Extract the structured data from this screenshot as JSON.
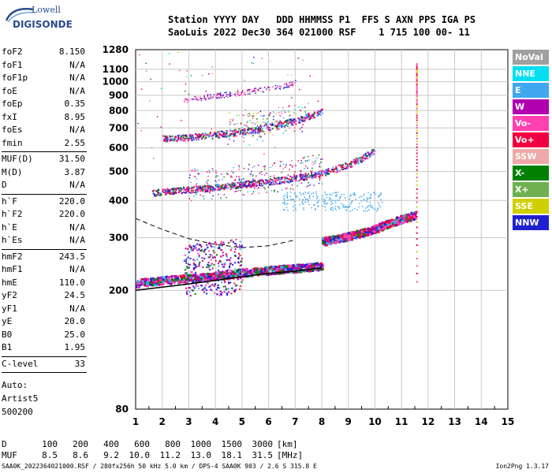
{
  "header": {
    "labels_line": "Station YYYY DAY   DDD HHMMSS P1  FFS S AXN PPS IGA PS",
    "values_line": "SaoLuis 2022 Dec30 364 021000 RSF    1 715 100 00- 11"
  },
  "logo": {
    "top": "Lowell",
    "bottom": "DIGISONDE"
  },
  "params": [
    [
      {
        "k": "foF2",
        "v": "8.150"
      },
      {
        "k": "foF1",
        "v": "N/A"
      },
      {
        "k": "foF1p",
        "v": "N/A"
      },
      {
        "k": "foE",
        "v": "N/A"
      },
      {
        "k": "foEp",
        "v": "0.35"
      },
      {
        "k": "fxI",
        "v": "8.95"
      },
      {
        "k": "foEs",
        "v": "N/A"
      },
      {
        "k": "fmin",
        "v": "2.55"
      }
    ],
    [
      {
        "k": "MUF(D)",
        "v": "31.50"
      },
      {
        "k": "M(D)",
        "v": "3.87"
      },
      {
        "k": "D",
        "v": "N/A"
      }
    ],
    [
      {
        "k": "h`F",
        "v": "220.0"
      },
      {
        "k": "h`F2",
        "v": "220.0"
      },
      {
        "k": "h`E",
        "v": "N/A"
      },
      {
        "k": "h`Es",
        "v": "N/A"
      }
    ],
    [
      {
        "k": "hmF2",
        "v": "243.5"
      },
      {
        "k": "hmF1",
        "v": "N/A"
      },
      {
        "k": "hmE",
        "v": "110.0"
      },
      {
        "k": "yF2",
        "v": "24.5"
      },
      {
        "k": "yF1",
        "v": "N/A"
      },
      {
        "k": "yE",
        "v": "20.0"
      },
      {
        "k": "B0",
        "v": "25.0"
      },
      {
        "k": "B1",
        "v": "1.95"
      }
    ],
    [
      {
        "k": "C-level",
        "v": "33"
      }
    ]
  ],
  "autoscale": {
    "l1": "Auto:",
    "l2": "Artist5",
    "l3": "500200"
  },
  "legend": [
    {
      "label": "NoVal",
      "color": "#a0a0a0"
    },
    {
      "label": "NNE",
      "color": "#00e0f0"
    },
    {
      "label": "E",
      "color": "#40a8f0"
    },
    {
      "label": "W",
      "color": "#b000b0"
    },
    {
      "label": "Vo-",
      "color": "#ff40b0"
    },
    {
      "label": "Vo+",
      "color": "#f00040"
    },
    {
      "label": "SSW",
      "color": "#f0a8a8"
    },
    {
      "label": "X-",
      "color": "#008000"
    },
    {
      "label": "X+",
      "color": "#70b050"
    },
    {
      "label": "SSE",
      "color": "#d0d000"
    },
    {
      "label": "NNW",
      "color": "#2020d0"
    }
  ],
  "mufTable": {
    "d_label": "D",
    "d_values": [
      "100",
      "200",
      "400",
      "600",
      "800",
      "1000",
      "1500",
      "3000"
    ],
    "d_unit": "[km]",
    "muf_label": "MUF",
    "muf_values": [
      "8.5",
      "8.6",
      "9.2",
      "10.0",
      "11.2",
      "13.0",
      "18.1",
      "31.5"
    ],
    "muf_unit": "[MHz]"
  },
  "footer": {
    "left": "SAA0K_2022364021000.RSF / 280fx256h 50 kHz 5.0 km / DPS-4 SAA0K 903 / 2.6 S 315.8 E",
    "right": "Ion2Png 1.3.17"
  },
  "chart_data": {
    "type": "scatter",
    "title": "",
    "xlabel": "",
    "ylabel": "",
    "xlim": [
      1,
      15
    ],
    "ylim": [
      80,
      1280
    ],
    "y_scale": "log",
    "x_ticks": [
      1,
      2,
      3,
      4,
      5,
      6,
      7,
      8,
      9,
      10,
      11,
      12,
      13,
      14,
      15
    ],
    "y_ticks": [
      80,
      200,
      300,
      400,
      500,
      600,
      700,
      800,
      900,
      1000,
      1100,
      1280
    ],
    "grid": true,
    "traces": [
      {
        "name": "trace_o1",
        "x": [
          1.0,
          2.0,
          3.0,
          4.0,
          5.0,
          6.0,
          7.0,
          7.5,
          8.0
        ],
        "y": [
          210,
          215,
          218,
          222,
          228,
          232,
          236,
          238,
          240
        ]
      },
      {
        "name": "trace_1hop",
        "x": [
          8.0,
          8.5,
          9.0,
          9.5,
          10.0,
          10.5,
          11.0,
          11.5
        ],
        "y": [
          290,
          295,
          302,
          310,
          320,
          333,
          345,
          355
        ]
      },
      {
        "name": "trace_2hop",
        "x": [
          1.5,
          2,
          3,
          4,
          5,
          6,
          7,
          8,
          8.5,
          9,
          9.5,
          10
        ],
        "y": [
          420,
          425,
          432,
          440,
          450,
          460,
          472,
          490,
          505,
          525,
          550,
          585
        ]
      },
      {
        "name": "trace_3hop",
        "x": [
          2,
          3,
          4,
          5,
          6,
          7,
          8
        ],
        "y": [
          640,
          648,
          660,
          675,
          700,
          735,
          790
        ]
      },
      {
        "name": "trace_4hop",
        "x": [
          2.8,
          3.5,
          4,
          5,
          6,
          6.5,
          7
        ],
        "y": [
          862,
          880,
          892,
          915,
          945,
          962,
          985
        ]
      }
    ],
    "model_profile": {
      "x": [
        1,
        2,
        3,
        4,
        5,
        6,
        7,
        7.5,
        8
      ],
      "y": [
        200,
        205,
        210,
        216,
        222,
        228,
        232,
        235,
        238
      ]
    },
    "dashed_profile": {
      "x": [
        1,
        2,
        3,
        4,
        5,
        6,
        7
      ],
      "y": [
        348,
        320,
        298,
        285,
        278,
        282,
        295
      ]
    },
    "mufD": 31.5
  }
}
